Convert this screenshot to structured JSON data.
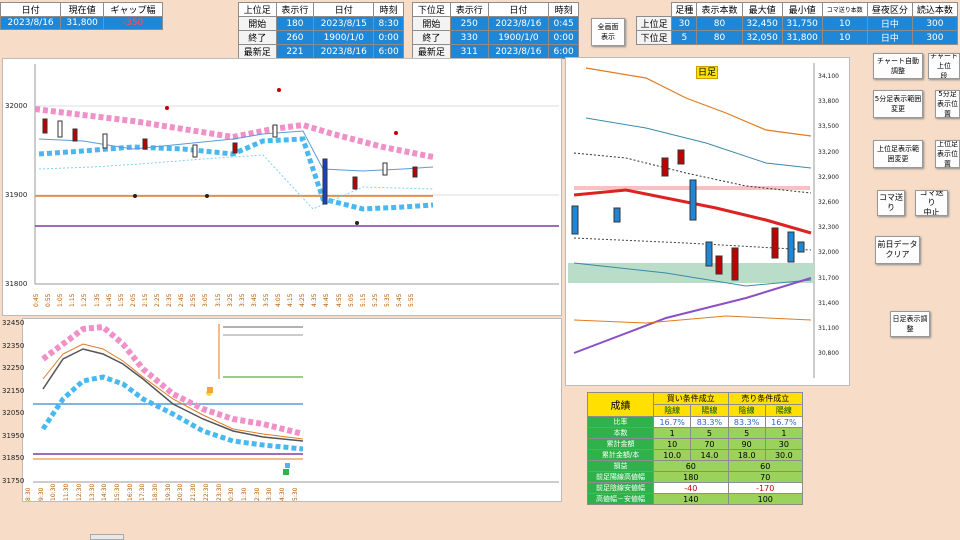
{
  "top_left": {
    "headers": [
      "日付",
      "現在値",
      "ギャップ幅"
    ],
    "values": [
      "2023/8/16",
      "31,800",
      "-350"
    ]
  },
  "upper_table": {
    "headers": [
      "上位足",
      "表示行",
      "日付",
      "時刻"
    ],
    "rows": [
      [
        "開始",
        "180",
        "2023/8/15",
        "8:30"
      ],
      [
        "終了",
        "260",
        "1900/1/0",
        "0:00"
      ],
      [
        "最新足",
        "221",
        "2023/8/16",
        "6:00"
      ]
    ]
  },
  "lower_table": {
    "headers": [
      "下位足",
      "表示行",
      "日付",
      "時刻"
    ],
    "rows": [
      [
        "開始",
        "250",
        "2023/8/16",
        "0:45"
      ],
      [
        "終了",
        "330",
        "1900/1/0",
        "0:00"
      ],
      [
        "最新足",
        "311",
        "2023/8/16",
        "6:00"
      ]
    ]
  },
  "fullscreen_button": "全画面\n表示",
  "right_table": {
    "headers": [
      "",
      "足種",
      "表示本数",
      "最大値",
      "最小値",
      "コマ送り本数",
      "昼夜区分",
      "読込本数"
    ],
    "rows": [
      [
        "上位足",
        "30",
        "80",
        "32,450",
        "31,750",
        "10",
        "日中",
        "300"
      ],
      [
        "下位足",
        "5",
        "80",
        "32,050",
        "31,800",
        "10",
        "日中",
        "300"
      ]
    ]
  },
  "buttons": {
    "chart_adjust": "チャート自動調整",
    "chart_upper": "チャート上位\n段",
    "five_min_range": "5分足表示範囲変更",
    "five_min_pos": "5分足表示位置",
    "upper_range": "上位足表示範囲変更",
    "upper_pos": "上位足表示位置",
    "step": "コマ送り",
    "step_stop": "コマ送り\n中止",
    "prev_clear": "前日データ\nクリア",
    "daily_show": "日足表示調整"
  },
  "upper_chart": {
    "y_ticks": [
      "32000",
      "31900",
      "31800"
    ],
    "x_ticks": [
      "0:45",
      "0:55",
      "1:05",
      "1:15",
      "1:25",
      "1:35",
      "1:45",
      "1:55",
      "2:05",
      "2:15",
      "2:25",
      "2:35",
      "2:45",
      "2:55",
      "3:05",
      "3:15",
      "3:25",
      "3:35",
      "3:45",
      "3:55",
      "4:05",
      "4:15",
      "4:25",
      "4:35",
      "4:45",
      "4:55",
      "5:05",
      "5:15",
      "5:25",
      "5:35",
      "5:45",
      "5:55"
    ]
  },
  "lower_chart": {
    "y_ticks": [
      "32450",
      "32350",
      "32250",
      "32150",
      "32050",
      "31950",
      "31850",
      "31750"
    ],
    "x_ticks": [
      "8:30",
      "9:30",
      "10:30",
      "11:30",
      "12:30",
      "13:30",
      "14:30",
      "15:30",
      "16:30",
      "17:30",
      "18:30",
      "19:30",
      "20:30",
      "21:30",
      "22:30",
      "23:30",
      "0:30",
      "1:30",
      "2:30",
      "3:30",
      "4:30",
      "5:30"
    ]
  },
  "daily_chart": {
    "title": "日足",
    "y_ticks": [
      "34,100",
      "33,800",
      "33,500",
      "33,200",
      "32,900",
      "32,600",
      "32,300",
      "32,000",
      "31,700",
      "31,400",
      "31,100",
      "30,800"
    ]
  },
  "score": {
    "title": "成績",
    "buy": "買い条件成立",
    "sell": "売り条件成立",
    "neg": "陰線",
    "posi": "陽線",
    "rows": [
      {
        "label": "比率",
        "v": [
          "16.7%",
          "83.3%",
          "83.3%",
          "16.7%"
        ]
      },
      {
        "label": "本数",
        "v": [
          "1",
          "5",
          "5",
          "1"
        ]
      },
      {
        "label": "累計金額",
        "v": [
          "10",
          "70",
          "90",
          "30"
        ]
      },
      {
        "label": "累計金額/本",
        "v": [
          "10.0",
          "14.0",
          "18.0",
          "30.0"
        ]
      }
    ],
    "rows2": [
      {
        "label": "損益",
        "v": [
          "60",
          "60"
        ]
      },
      {
        "label": "前足陽線高値幅",
        "v": [
          "180",
          "70"
        ]
      },
      {
        "label": "前足陰線安値幅",
        "v": [
          "-40",
          "-170"
        ]
      },
      {
        "label": "高値幅－安値幅",
        "v": [
          "140",
          "100"
        ]
      }
    ]
  },
  "colors": {
    "accent": "#1f87d6",
    "header_yellow": "#ffe000",
    "label_green": "#2fb24b"
  }
}
